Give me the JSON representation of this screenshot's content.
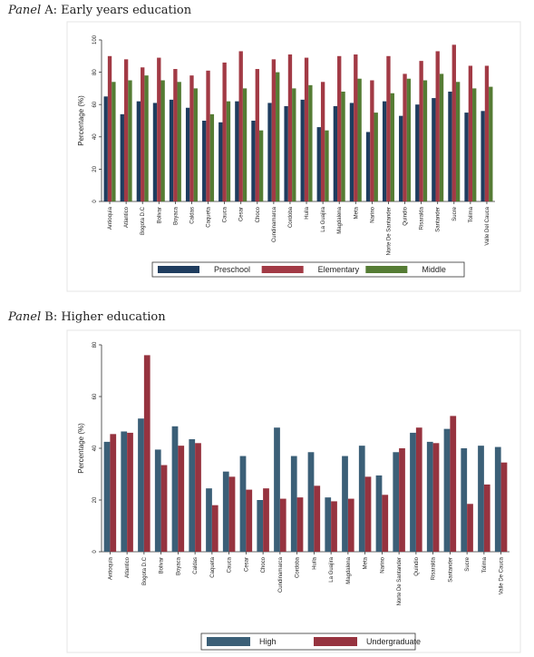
{
  "panel_a": {
    "title_prefix": "Panel",
    "title_rest": " A: Early years education"
  },
  "panel_b": {
    "title_prefix": "Panel",
    "title_rest": " B: Higher education"
  },
  "chart_data": [
    {
      "type": "bar",
      "ylabel": "Percentage (%)",
      "ylim": [
        0,
        100
      ],
      "yticks": [
        0,
        20,
        40,
        60,
        80,
        100
      ],
      "legend_position": "bottom",
      "categories": [
        "Antioquia",
        "Atlantico",
        "Bogota D.C",
        "Bolivar",
        "Boyaca",
        "Caldas",
        "Caqueta",
        "Cauca",
        "Cesar",
        "Choco",
        "Cundinamarca",
        "Cordoba",
        "Huila",
        "La Guajira",
        "Magdalena",
        "Meta",
        "Narino",
        "Norte De Santander",
        "Quindio",
        "Risaralda",
        "Santander",
        "Sucre",
        "Tolima",
        "Valle Del Cauca"
      ],
      "series": [
        {
          "name": "Preschool",
          "color": "#1f3d5f",
          "values": [
            65,
            54,
            62,
            61,
            63,
            58,
            50,
            49,
            62,
            50,
            61,
            59,
            63,
            46,
            59,
            61,
            43,
            62,
            53,
            60,
            64,
            68,
            55,
            56
          ]
        },
        {
          "name": "Elementary",
          "color": "#a23a45",
          "values": [
            90,
            88,
            83,
            89,
            82,
            78,
            81,
            86,
            93,
            82,
            88,
            91,
            89,
            74,
            90,
            91,
            75,
            90,
            79,
            87,
            93,
            97,
            84,
            84
          ]
        },
        {
          "name": "Middle",
          "color": "#557c34",
          "values": [
            74,
            75,
            78,
            75,
            74,
            70,
            54,
            62,
            70,
            44,
            80,
            70,
            72,
            44,
            68,
            76,
            55,
            67,
            76,
            75,
            79,
            74,
            70,
            71
          ]
        }
      ]
    },
    {
      "type": "bar",
      "ylabel": "Percentage (%)",
      "ylim": [
        0,
        80
      ],
      "yticks": [
        0,
        20,
        40,
        60,
        80
      ],
      "legend_position": "bottom",
      "categories": [
        "Antioquia",
        "Atlantico",
        "Bogota D.C",
        "Bolivar",
        "Boyaca",
        "Caldas",
        "Caqueta",
        "Cauca",
        "Cesar",
        "Choco",
        "Cundinamarca",
        "Cordoba",
        "Huila",
        "La Guajira",
        "Magdalena",
        "Meta",
        "Narino",
        "Norte De Santander",
        "Quindio",
        "Risaralda",
        "Santander",
        "Sucre",
        "Tolima",
        "Valle De Cauca"
      ],
      "series": [
        {
          "name": "High",
          "color": "#3b5f77",
          "values": [
            42.5,
            46.5,
            51.5,
            39.5,
            48.5,
            43.5,
            24.5,
            31,
            37,
            20,
            48,
            37,
            38.5,
            21,
            37,
            41,
            29.5,
            38.5,
            46,
            42.5,
            47.5,
            40,
            41,
            40.5
          ]
        },
        {
          "name": "Undergraduate",
          "color": "#96333f",
          "values": [
            45.5,
            46,
            76,
            33.5,
            41,
            42,
            18,
            29,
            24,
            24.5,
            20.5,
            21,
            25.5,
            19.5,
            20.5,
            29,
            22,
            40,
            48,
            42,
            52.5,
            18.5,
            26,
            34.5
          ]
        }
      ]
    }
  ]
}
